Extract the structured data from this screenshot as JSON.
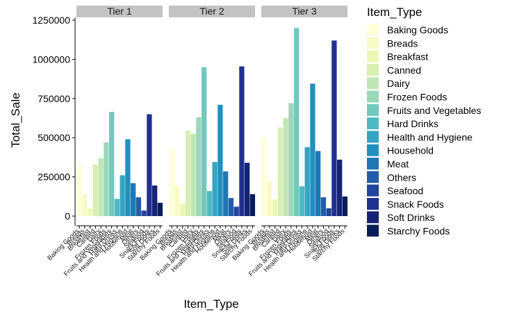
{
  "chart_data": {
    "type": "bar",
    "faceted": true,
    "xlabel": "Item_Type",
    "ylabel": "Total_Sale",
    "ylim": [
      0,
      1250000
    ],
    "y_ticks": [
      0,
      250000,
      500000,
      750000,
      1000000,
      1250000
    ],
    "y_tick_labels": [
      "0",
      "250000",
      "500000",
      "750000",
      "1000000",
      "1250000"
    ],
    "grid": false,
    "legend": {
      "title": "Item_Type",
      "position": "right"
    },
    "categories": [
      "Baking Goods",
      "Breads",
      "Breakfast",
      "Canned",
      "Dairy",
      "Frozen Foods",
      "Fruits and Vegetables",
      "Hard Drinks",
      "Health and Hygiene",
      "Household",
      "Meat",
      "Others",
      "Seafood",
      "Snack Foods",
      "Soft Drinks",
      "Starchy Foods"
    ],
    "colors": [
      "#ffffd9",
      "#f7fcc8",
      "#eef8b6",
      "#d8efb3",
      "#c1e6b5",
      "#99d7b8",
      "#73c8bd",
      "#4fb9c2",
      "#33a5c2",
      "#2190bf",
      "#1f77b4",
      "#225da8",
      "#24449c",
      "#1f3090",
      "#162374",
      "#081d58"
    ],
    "panels": [
      {
        "label": "Tier 1",
        "values": [
          325000,
          135000,
          50000,
          330000,
          370000,
          470000,
          665000,
          110000,
          260000,
          490000,
          210000,
          120000,
          35000,
          650000,
          195000,
          85000
        ]
      },
      {
        "label": "Tier 2",
        "values": [
          430000,
          195000,
          80000,
          545000,
          525000,
          630000,
          950000,
          160000,
          345000,
          710000,
          285000,
          115000,
          60000,
          955000,
          340000,
          140000
        ]
      },
      {
        "label": "Tier 3",
        "values": [
          505000,
          225000,
          105000,
          565000,
          625000,
          720000,
          1200000,
          190000,
          440000,
          845000,
          415000,
          120000,
          50000,
          1120000,
          360000,
          125000
        ]
      }
    ]
  }
}
